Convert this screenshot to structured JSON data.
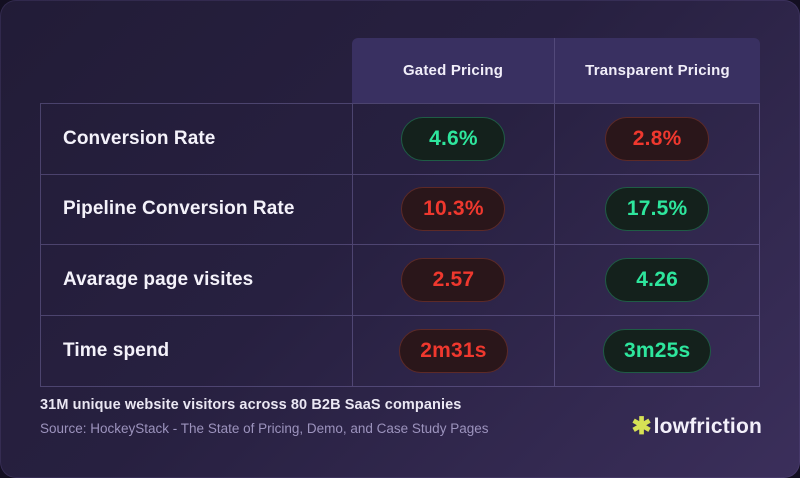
{
  "chart_data": {
    "type": "table",
    "title": "",
    "categories": [
      "Gated Pricing",
      "Transparent Pricing"
    ],
    "row_labels": [
      "Conversion Rate",
      "Pipeline Conversion Rate",
      "Avarage page visites",
      "Time spend"
    ],
    "series": [
      {
        "name": "Gated Pricing",
        "values": [
          "4.6%",
          "10.3%",
          "2.57",
          "2m31s"
        ]
      },
      {
        "name": "Transparent Pricing",
        "values": [
          "2.8%",
          "17.5%",
          "4.26",
          "3m25s"
        ]
      }
    ],
    "color_coding": {
      "good_values": [
        "4.6%",
        "17.5%",
        "4.26",
        "3m25s"
      ],
      "bad_values": [
        "2.8%",
        "10.3%",
        "2.57",
        "2m31s"
      ]
    }
  },
  "table": {
    "header": [
      "Gated Pricing",
      "Transparent Pricing"
    ],
    "rows": [
      {
        "label": "Conversion Rate",
        "cells": [
          {
            "value": "4.6%",
            "status": "good"
          },
          {
            "value": "2.8%",
            "status": "bad"
          }
        ]
      },
      {
        "label": "Pipeline Conversion Rate",
        "cells": [
          {
            "value": "10.3%",
            "status": "bad"
          },
          {
            "value": "17.5%",
            "status": "good"
          }
        ]
      },
      {
        "label": "Avarage page visites",
        "cells": [
          {
            "value": "2.57",
            "status": "bad"
          },
          {
            "value": "4.26",
            "status": "good"
          }
        ]
      },
      {
        "label": "Time spend",
        "cells": [
          {
            "value": "2m31s",
            "status": "bad"
          },
          {
            "value": "3m25s",
            "status": "good"
          }
        ]
      }
    ]
  },
  "footer": {
    "note": "31M unique website visitors across 80 B2B SaaS companies",
    "source": "Source: HockeyStack - The State of Pricing, Demo, and Case Study Pages"
  },
  "logo": {
    "icon": "✱",
    "text": "lowfriction"
  },
  "colors": {
    "good_text": "#2ee69d",
    "good_border": "#1f5c45",
    "good_bg": "#14211c",
    "bad_text": "#ef382e",
    "bad_border": "#5d2a27",
    "bad_bg": "#2a161a",
    "header_bg": "#393061",
    "card_gradient_start": "#221c37",
    "card_gradient_end": "#3b2f5b",
    "logo_accent": "#d7e155"
  }
}
